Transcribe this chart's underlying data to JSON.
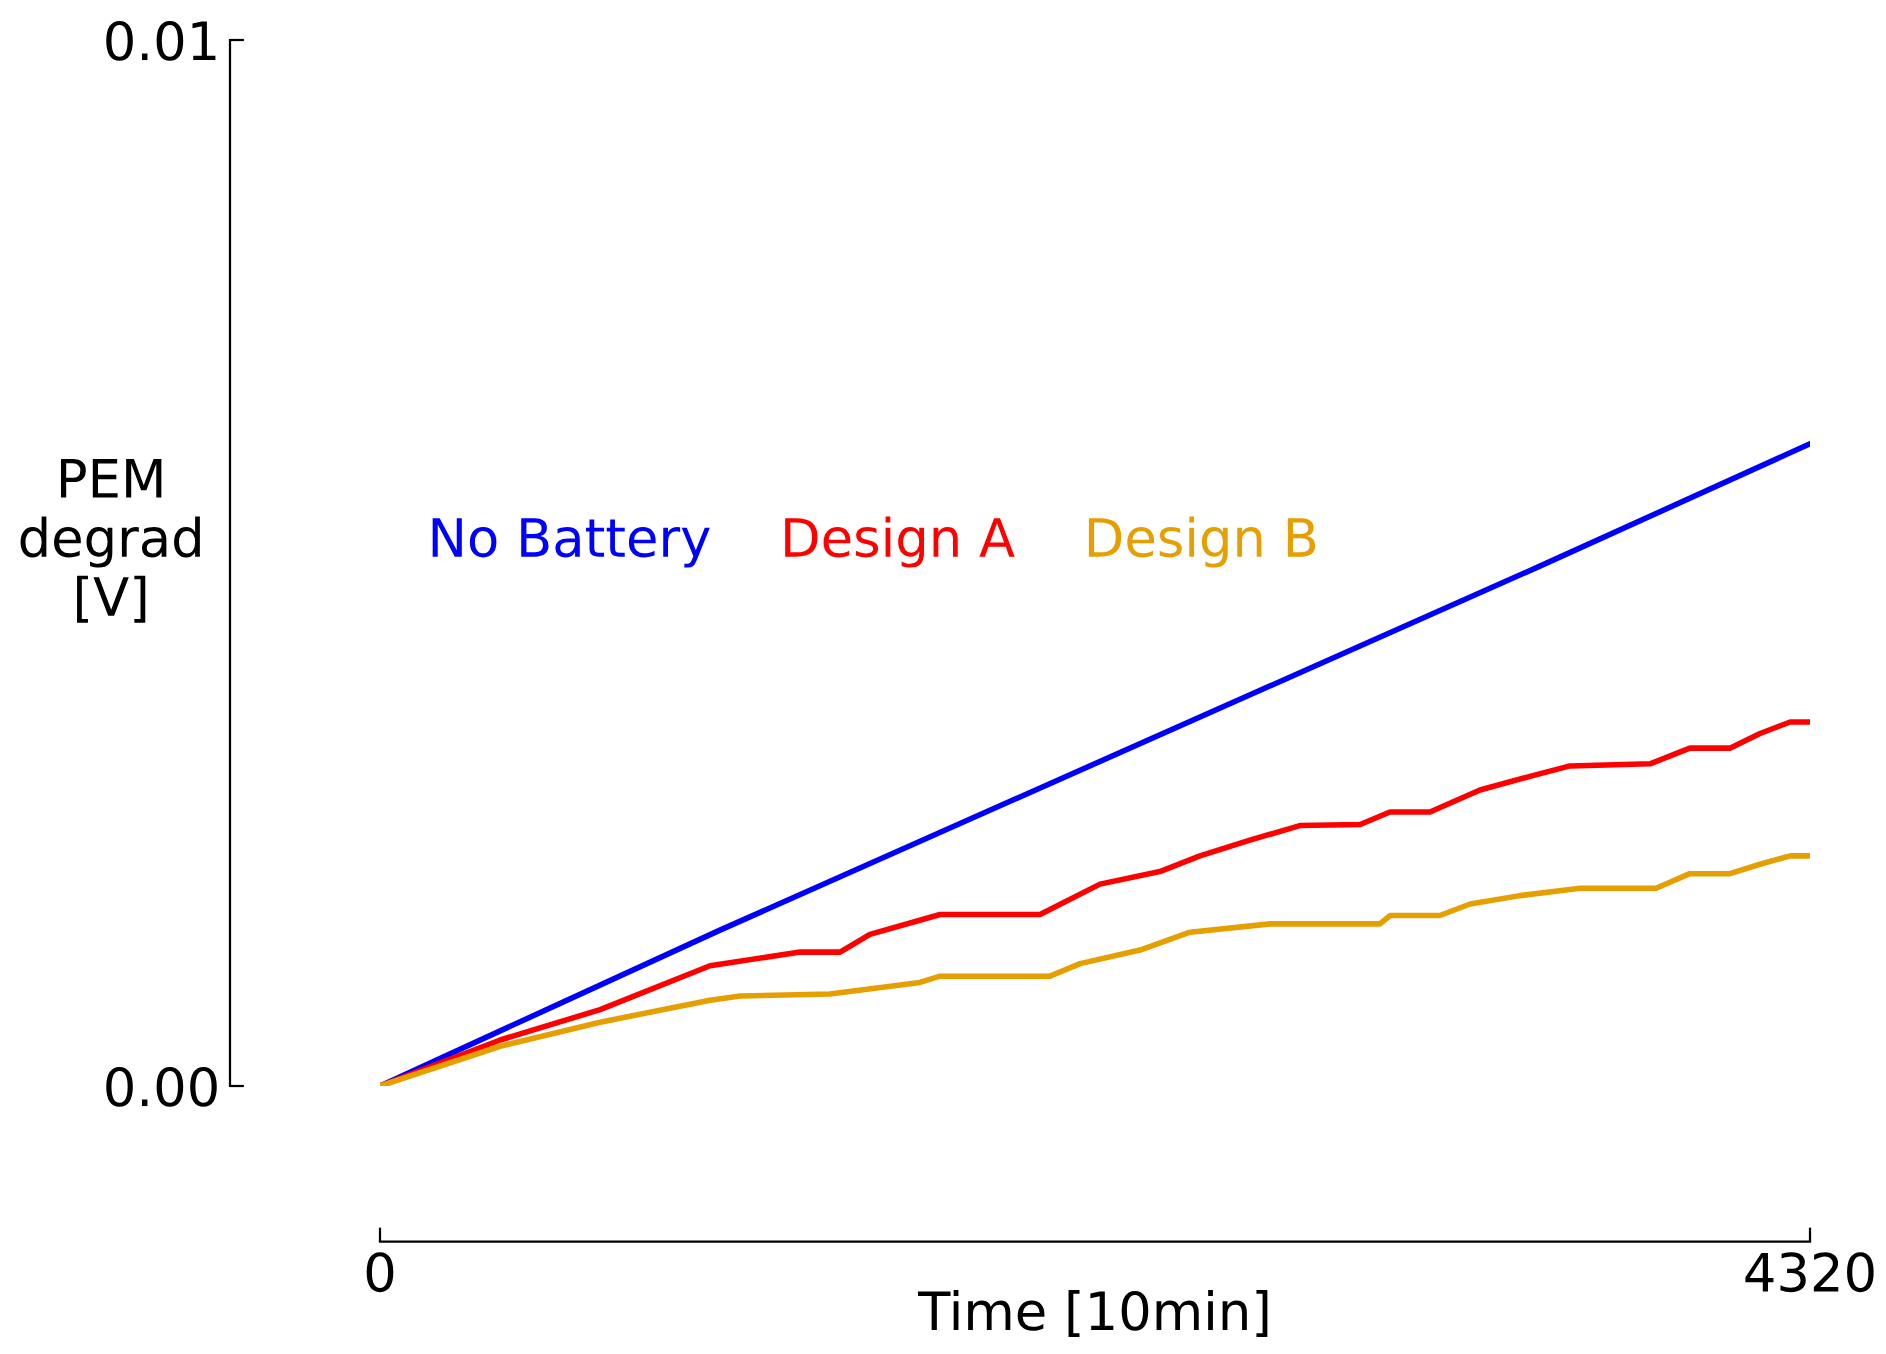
{
  "chart_data": {
    "type": "line",
    "xlabel": "Time [10min]",
    "ylabel": "PEM\ndegrad\n[V]",
    "xlim": [
      0,
      4320
    ],
    "xticks": [
      0,
      4320
    ],
    "ylim": [
      0,
      0.01
    ],
    "yticks": [
      {
        "value": 0,
        "label": "0.00"
      },
      0.01
    ],
    "grid": false,
    "legend": "center left",
    "marker": "none",
    "line_style": "solid",
    "series": [
      {
        "name": "No Battery",
        "color": "#0000ff",
        "x": [
          0,
          1027,
          3504,
          4320
        ],
        "values": [
          0,
          0.00149,
          0.00497,
          0.00614
        ]
      },
      {
        "name": "Design A",
        "color": "#ff0000",
        "x": [
          0,
          363,
          665,
          997,
          1269,
          1390,
          1480,
          1692,
          1994,
          2175,
          2356,
          2477,
          2628,
          2779,
          2961,
          3051,
          3172,
          3323,
          3474,
          3595,
          3837,
          3957,
          4078,
          4169,
          4260,
          4320
        ],
        "values": [
          0,
          0.00044,
          0.00073,
          0.00115,
          0.00128,
          0.00128,
          0.00145,
          0.00164,
          0.00164,
          0.00193,
          0.00205,
          0.0022,
          0.00235,
          0.00249,
          0.0025,
          0.00262,
          0.00262,
          0.00283,
          0.00296,
          0.00306,
          0.00308,
          0.00323,
          0.00323,
          0.00337,
          0.00348,
          0.00348
        ]
      },
      {
        "name": "Design B",
        "color": "#e69f00",
        "x": [
          0,
          363,
          665,
          997,
          1088,
          1359,
          1631,
          1692,
          2024,
          2115,
          2296,
          2447,
          2689,
          3021,
          3051,
          3202,
          3293,
          3444,
          3625,
          3855,
          3957,
          4078,
          4169,
          4260,
          4320
        ],
        "values": [
          0,
          0.00038,
          0.00061,
          0.00082,
          0.00086,
          0.00088,
          0.00099,
          0.00105,
          0.00105,
          0.00117,
          0.0013,
          0.00147,
          0.00155,
          0.00155,
          0.00163,
          0.00163,
          0.00174,
          0.00182,
          0.00189,
          0.00189,
          0.00203,
          0.00203,
          0.00212,
          0.0022,
          0.0022
        ]
      }
    ]
  }
}
